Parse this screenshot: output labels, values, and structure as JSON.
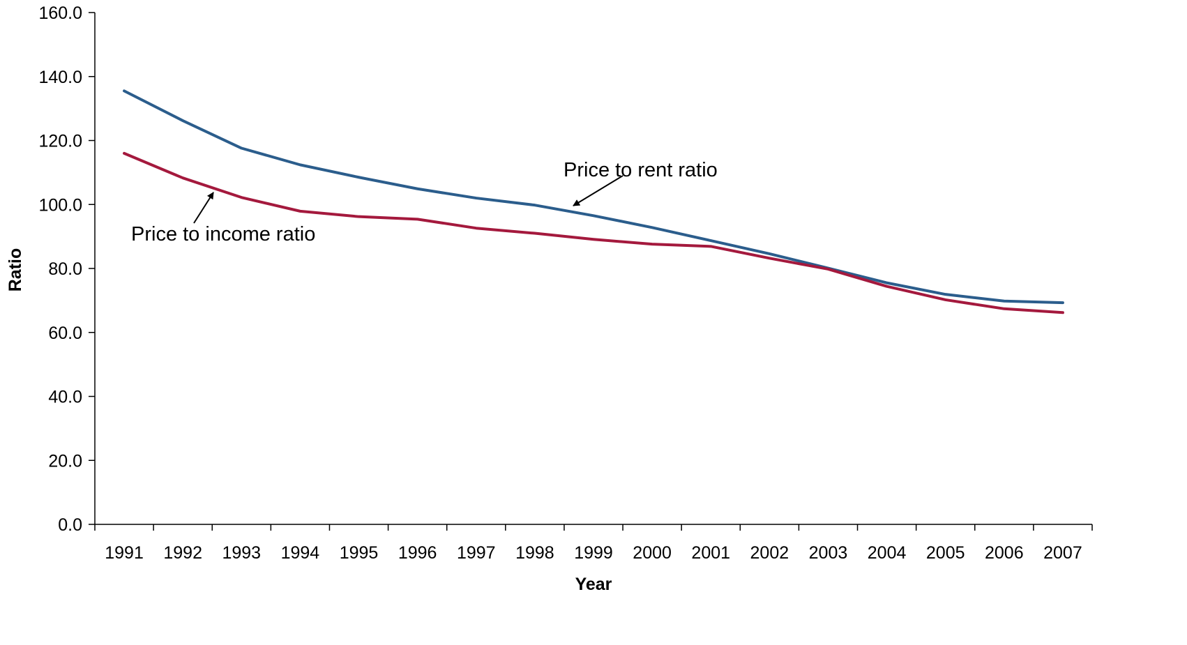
{
  "chart_data": {
    "type": "line",
    "title": "",
    "xlabel": "Year",
    "ylabel": "Ratio",
    "categories": [
      "1991",
      "1992",
      "1993",
      "1994",
      "1995",
      "1996",
      "1997",
      "1998",
      "1999",
      "2000",
      "2001",
      "2002",
      "2003",
      "2004",
      "2005",
      "2006",
      "2007"
    ],
    "ylim": [
      0,
      160
    ],
    "yticks": [
      "0.0",
      "20.0",
      "40.0",
      "60.0",
      "80.0",
      "100.0",
      "120.0",
      "140.0",
      "160.0"
    ],
    "grid": false,
    "legend": "none",
    "series": [
      {
        "key": "rent",
        "color": "#2B5D8C",
        "values": [
          135.5,
          126.2,
          117.6,
          112.4,
          108.5,
          104.9,
          102.0,
          99.8,
          96.5,
          92.8,
          88.7,
          84.6,
          80.1,
          75.5,
          71.9,
          69.8,
          69.3
        ]
      },
      {
        "key": "income",
        "color": "#A4193D",
        "values": [
          116.0,
          108.3,
          102.2,
          97.9,
          96.2,
          95.4,
          92.6,
          91.0,
          89.1,
          87.6,
          86.9,
          83.2,
          79.8,
          74.4,
          70.2,
          67.4,
          66.2
        ]
      }
    ],
    "annotations": [
      {
        "id": "rent-label",
        "text": "Price to rent ratio",
        "series": "rent",
        "point_category": "1998.5"
      },
      {
        "id": "income-label",
        "text": "Price to income ratio",
        "series": "income",
        "point_category": "1992.5"
      }
    ]
  }
}
